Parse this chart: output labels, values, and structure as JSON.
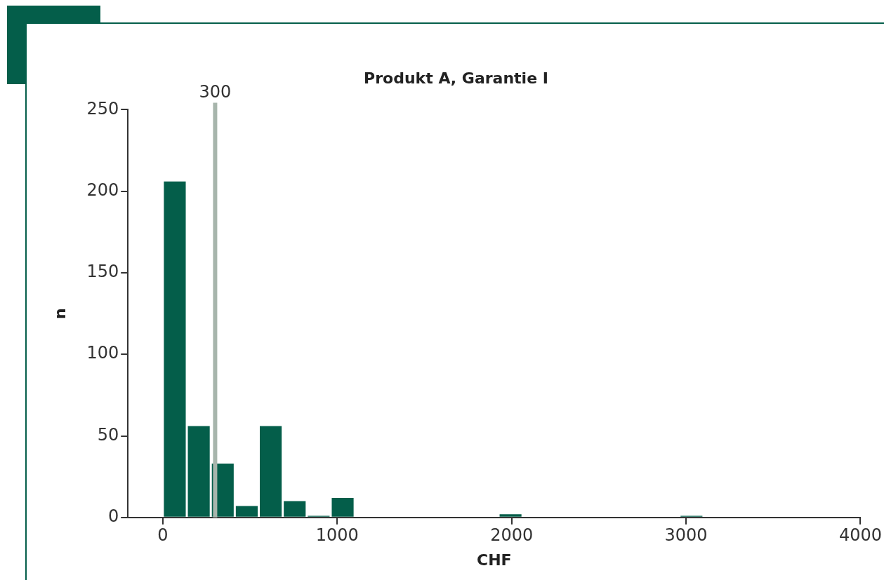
{
  "chart_data": {
    "type": "histogram",
    "title": "Produkt A, Garantie I",
    "xlabel": "CHF",
    "ylabel": "n",
    "bins": [
      0,
      137.5,
      275,
      412.5,
      550,
      687.5,
      825,
      962.5,
      1100,
      1925,
      2062.5,
      2962.5,
      3100
    ],
    "values": [
      206,
      56,
      33,
      7,
      56,
      10,
      1,
      12,
      0,
      2,
      0,
      1
    ],
    "color": "#045e4a",
    "xlim": [
      -200,
      4000
    ],
    "xticks": [
      0,
      1000,
      2000,
      3000,
      4000
    ],
    "ylim": [
      0,
      250
    ],
    "yticks": [
      0,
      50,
      100,
      150,
      200,
      250
    ],
    "ref_lines": [
      {
        "axis": "x",
        "value": 300,
        "label": "300",
        "color": "#a7b5ac"
      }
    ],
    "grid": false,
    "legend": false
  }
}
